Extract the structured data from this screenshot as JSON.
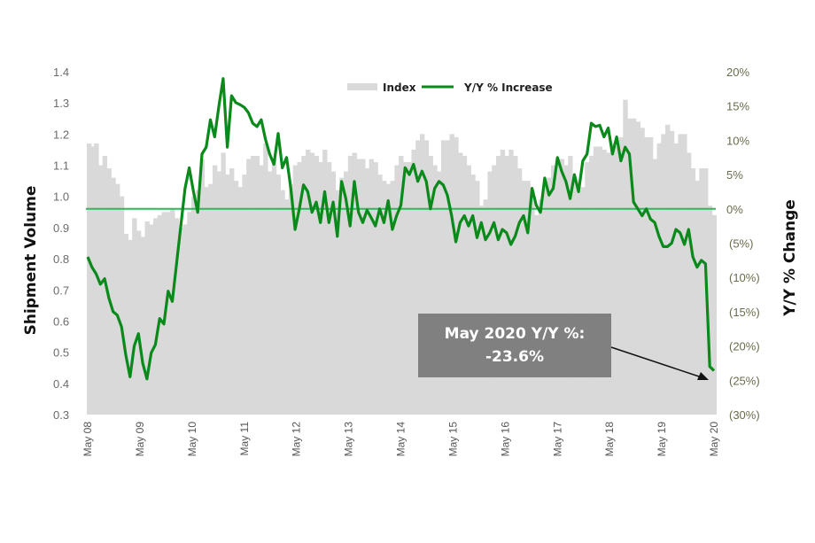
{
  "chart_data": {
    "type": "bar+line",
    "title": "",
    "legend": [
      {
        "name": "Index",
        "type": "bar",
        "color": "#d9d9d9"
      },
      {
        "name": "Y/Y % Increase",
        "type": "line",
        "color": "#0a8a1a"
      }
    ],
    "legend_position": "top-center",
    "ylabel_left": "Shipment Volume",
    "ylabel_right": "Y/Y % Change",
    "ylim_left": [
      0.3,
      1.4
    ],
    "ylim_right": [
      -30,
      20
    ],
    "yticks_left": [
      "1.4",
      "1.3",
      "1.2",
      "1.1",
      "1.0",
      "0.9",
      "0.8",
      "0.7",
      "0.6",
      "0.5",
      "0.4",
      "0.3"
    ],
    "yticks_right": [
      "20%",
      "15%",
      "10%",
      "5%",
      "0%",
      "(5%)",
      "(10%)",
      "(15%)",
      "(20%)",
      "(25%)",
      "(30%)"
    ],
    "xticks": [
      "May 08",
      "May 09",
      "May 10",
      "May 11",
      "May 12",
      "May 13",
      "May 14",
      "May 15",
      "May 16",
      "May 17",
      "May 18",
      "May 19",
      "May 20"
    ],
    "grid": false,
    "reference_line": {
      "axis": "right",
      "value": 0,
      "color": "#2eb85c"
    },
    "x_start": "May 2008",
    "x_end": "May 2020",
    "frequency": "monthly",
    "series": [
      {
        "name": "Index",
        "values": [
          1.17,
          1.16,
          1.17,
          1.1,
          1.13,
          1.09,
          1.06,
          1.04,
          1.0,
          0.88,
          0.86,
          0.93,
          0.89,
          0.87,
          0.92,
          0.91,
          0.93,
          0.94,
          0.95,
          0.95,
          0.96,
          0.93,
          0.9,
          0.91,
          0.95,
          1.0,
          1.02,
          1.12,
          1.03,
          1.04,
          1.1,
          1.08,
          1.14,
          1.07,
          1.09,
          1.05,
          1.03,
          1.07,
          1.12,
          1.13,
          1.13,
          1.1,
          1.17,
          1.08,
          1.12,
          1.07,
          1.02,
          0.99,
          1.04,
          1.1,
          1.11,
          1.13,
          1.15,
          1.14,
          1.13,
          1.11,
          1.15,
          1.11,
          1.08,
          1.02,
          1.06,
          1.08,
          1.13,
          1.14,
          1.12,
          1.12,
          1.09,
          1.12,
          1.11,
          1.07,
          1.05,
          1.04,
          1.05,
          1.1,
          1.13,
          1.11,
          1.11,
          1.15,
          1.18,
          1.2,
          1.18,
          1.13,
          1.1,
          1.08,
          1.18,
          1.18,
          1.2,
          1.19,
          1.14,
          1.13,
          1.1,
          1.07,
          1.05,
          0.97,
          0.99,
          1.08,
          1.1,
          1.13,
          1.15,
          1.13,
          1.15,
          1.13,
          1.09,
          1.05,
          1.05,
          1.02,
          0.94,
          0.99,
          1.03,
          1.06,
          1.1,
          1.12,
          1.12,
          1.1,
          1.13,
          1.06,
          1.02,
          1.03,
          1.11,
          1.13,
          1.16,
          1.16,
          1.15,
          1.14,
          1.17,
          1.16,
          1.19,
          1.31,
          1.25,
          1.25,
          1.24,
          1.22,
          1.19,
          1.19,
          1.12,
          1.17,
          1.2,
          1.23,
          1.21,
          1.17,
          1.2,
          1.2,
          1.14,
          1.09,
          1.05,
          1.09,
          1.09,
          0.97,
          0.94
        ]
      },
      {
        "name": "Y/Y % Increase",
        "values": [
          -7.0,
          -8.5,
          -9.5,
          -11.0,
          -10.2,
          -13.0,
          -15.0,
          -15.5,
          -17.2,
          -21.3,
          -24.5,
          -20.0,
          -18.2,
          -22.5,
          -24.8,
          -21.0,
          -19.8,
          -16.0,
          -16.8,
          -12.0,
          -13.5,
          -8.0,
          -2.5,
          3.0,
          6.0,
          2.5,
          -0.5,
          8.0,
          9.0,
          13.0,
          10.5,
          15.0,
          19.0,
          9.0,
          16.5,
          15.5,
          15.2,
          14.8,
          14.0,
          12.5,
          12.0,
          13.0,
          10.2,
          8.0,
          6.5,
          11.0,
          6.0,
          7.5,
          3.0,
          -3.0,
          0.0,
          3.5,
          2.5,
          -0.5,
          1.0,
          -2.0,
          2.5,
          -2.0,
          1.0,
          -4.0,
          4.0,
          1.5,
          -2.5,
          4.0,
          -0.5,
          -2.0,
          -0.2,
          -1.3,
          -2.5,
          0.0,
          -2.0,
          1.2,
          -3.0,
          -1.0,
          0.5,
          6.0,
          5.0,
          6.5,
          4.0,
          5.5,
          4.0,
          0.0,
          3.0,
          4.0,
          3.5,
          2.0,
          -1.0,
          -4.8,
          -2.0,
          -1.0,
          -2.5,
          -1.0,
          -4.2,
          -2.0,
          -4.5,
          -3.5,
          -2.0,
          -4.5,
          -3.0,
          -3.5,
          -5.2,
          -4.0,
          -2.0,
          -1.0,
          -3.5,
          3.0,
          0.5,
          -0.5,
          4.5,
          2.0,
          3.0,
          7.5,
          5.5,
          4.0,
          1.5,
          5.0,
          2.5,
          7.0,
          8.0,
          12.5,
          12.0,
          12.2,
          10.5,
          11.8,
          8.0,
          10.5,
          7.0,
          9.0,
          8.0,
          1.0,
          0.0,
          -1.0,
          0.0,
          -1.5,
          -2.0,
          -4.0,
          -5.5,
          -5.5,
          -5.0,
          -3.0,
          -3.5,
          -5.2,
          -3.0,
          -7.0,
          -8.5,
          -7.5,
          -8.0,
          -23.0,
          -23.6
        ]
      }
    ],
    "annotation": {
      "line1": "May 2020 Y/Y %:",
      "line2": "-23.6%",
      "box_color": "#808080",
      "arrow_target": "May 20"
    }
  },
  "legend": {
    "index_label": "Index",
    "yoy_label": "Y/Y % Increase"
  },
  "axes": {
    "left_title": "Shipment Volume",
    "right_title": "Y/Y % Change"
  },
  "callout": {
    "line1": "May 2020 Y/Y %:",
    "line2": "-23.6%"
  }
}
